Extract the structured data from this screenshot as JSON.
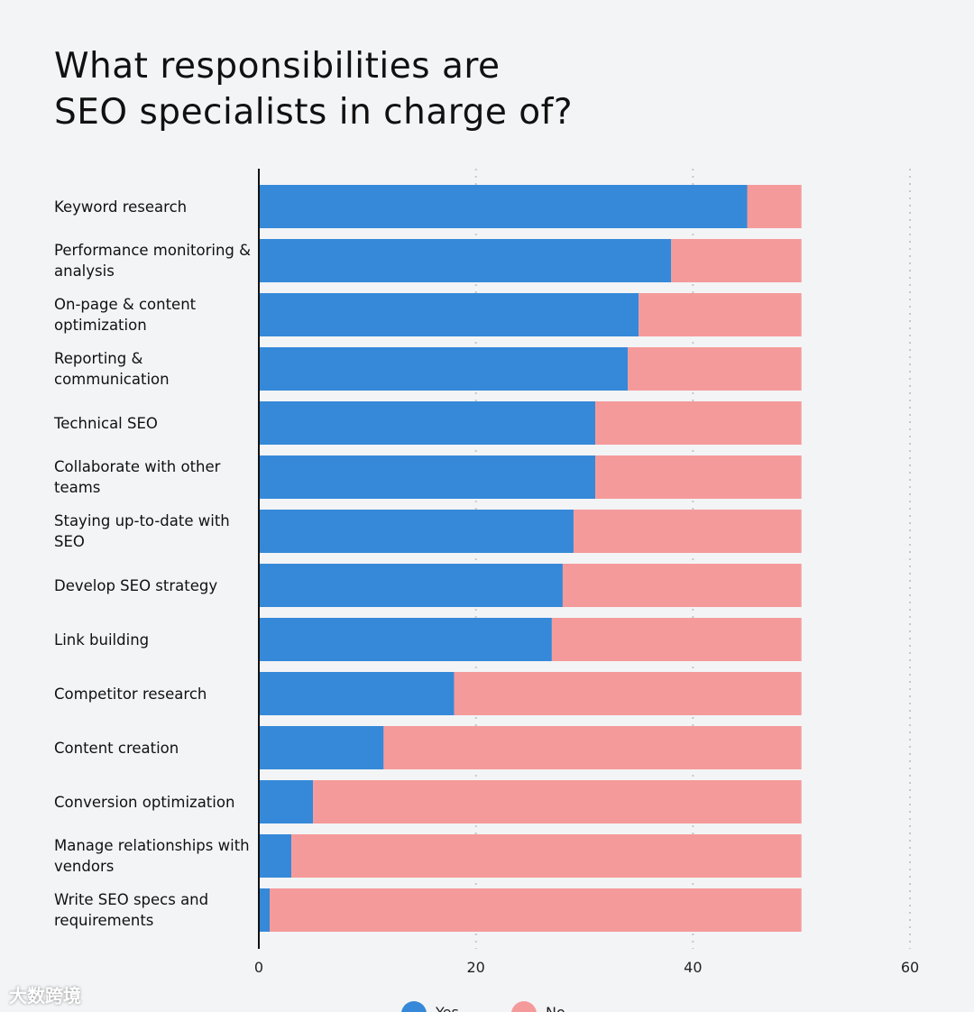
{
  "chart_data": {
    "type": "bar",
    "orientation": "horizontal",
    "stacked": true,
    "title": "What responsibilities are SEO specialists in charge of?",
    "categories": [
      "Keyword research",
      "Performance monitoring & analysis",
      "On-page & content optimization",
      "Reporting & communication",
      "Technical SEO",
      "Collaborate with other teams",
      "Staying up-to-date with SEO",
      "Develop SEO strategy",
      "Link building",
      "Competitor research",
      "Content creation",
      "Conversion optimization",
      "Manage relationships with vendors",
      "Write SEO specs and requirements"
    ],
    "series": [
      {
        "name": "Yes",
        "color": "#3589d8",
        "values": [
          45,
          38,
          35,
          34,
          31,
          31,
          29,
          28,
          27,
          18,
          11.5,
          5,
          3,
          1
        ]
      },
      {
        "name": "No",
        "color": "#f59a9a",
        "values": [
          5,
          12,
          15,
          16,
          19,
          19,
          21,
          22,
          23,
          32,
          38.5,
          45,
          47,
          49
        ]
      }
    ],
    "xlim": [
      0,
      60
    ],
    "xticks": [
      "0",
      "20",
      "40",
      "60"
    ],
    "grid": "vertical dotted",
    "legend": "bottom-center"
  },
  "title_lines": [
    "What responsibilities are",
    "SEO specialists in charge of?"
  ],
  "watermark": "大数跨境"
}
